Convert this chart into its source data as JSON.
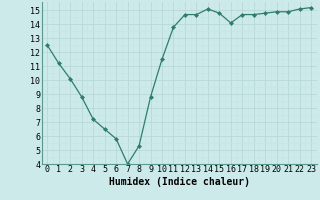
{
  "x": [
    0,
    1,
    2,
    3,
    4,
    5,
    6,
    7,
    8,
    9,
    10,
    11,
    12,
    13,
    14,
    15,
    16,
    17,
    18,
    19,
    20,
    21,
    22,
    23
  ],
  "y": [
    12.5,
    11.2,
    10.1,
    8.8,
    7.2,
    6.5,
    5.8,
    4.0,
    5.3,
    8.8,
    11.5,
    13.8,
    14.7,
    14.7,
    15.1,
    14.8,
    14.1,
    14.7,
    14.7,
    14.8,
    14.9,
    14.9,
    15.1,
    15.2
  ],
  "line_color": "#2e7d6e",
  "marker": "D",
  "markersize": 2.0,
  "linewidth": 0.9,
  "bg_color": "#cceaea",
  "grid_color_major": "#b0d4d4",
  "grid_color_minor": "#daf0f0",
  "xlabel": "Humidex (Indice chaleur)",
  "ylim": [
    4,
    15.6
  ],
  "xlim": [
    -0.5,
    23.5
  ],
  "yticks": [
    4,
    5,
    6,
    7,
    8,
    9,
    10,
    11,
    12,
    13,
    14,
    15
  ],
  "xticks": [
    0,
    1,
    2,
    3,
    4,
    5,
    6,
    7,
    8,
    9,
    10,
    11,
    12,
    13,
    14,
    15,
    16,
    17,
    18,
    19,
    20,
    21,
    22,
    23
  ],
  "xlabel_fontsize": 7,
  "tick_fontsize": 6
}
